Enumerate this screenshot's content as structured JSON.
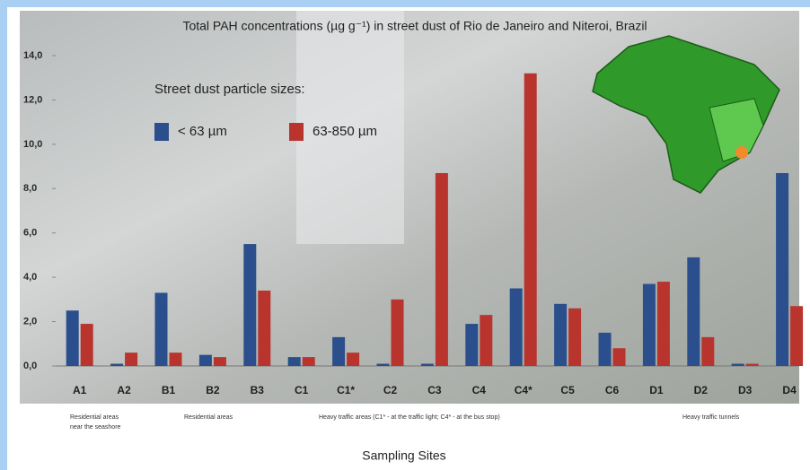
{
  "chart_data": {
    "type": "bar",
    "title": "Total PAH concentrations (µg g⁻¹) in street dust of Rio de Janeiro and Niteroi, Brazil",
    "legend_title": "Street dust particle sizes:",
    "x_label": "Sampling Sites",
    "categories": [
      "A1",
      "A2",
      "B1",
      "B2",
      "B3",
      "C1",
      "C1*",
      "C2",
      "C3",
      "C4",
      "C4*",
      "C5",
      "C6",
      "D1",
      "D2",
      "D3",
      "D4"
    ],
    "series": [
      {
        "name": "< 63 µm",
        "color": "#2b4f8c",
        "values": [
          2.5,
          0.1,
          3.3,
          0.5,
          5.5,
          0.4,
          1.3,
          0.1,
          0.1,
          1.9,
          3.5,
          2.8,
          1.5,
          3.7,
          4.9,
          0.1,
          8.7
        ]
      },
      {
        "name": "63-850 µm",
        "color": "#b9342d",
        "values": [
          1.9,
          0.6,
          0.6,
          0.4,
          3.4,
          0.4,
          0.6,
          3.0,
          8.7,
          2.3,
          13.2,
          2.6,
          0.8,
          3.8,
          1.3,
          0.1,
          2.7
        ]
      }
    ],
    "ylim": [
      0,
      14
    ],
    "yticks": [
      {
        "value": 0,
        "label": "0,0"
      },
      {
        "value": 2,
        "label": "2,0"
      },
      {
        "value": 4,
        "label": "4,0"
      },
      {
        "value": 6,
        "label": "6,0"
      },
      {
        "value": 8,
        "label": "8,0"
      },
      {
        "value": 10,
        "label": "10,0"
      },
      {
        "value": 12,
        "label": "12,0"
      },
      {
        "value": 14,
        "label": "14,0"
      }
    ],
    "group_labels": [
      {
        "lines": [
          "Residential areas",
          "near the seashore"
        ]
      },
      {
        "lines": [
          "Residential areas"
        ]
      },
      {
        "lines": [
          "Heavy traffic areas (C1* - at the traffic light; C4* - at the bus stop)"
        ]
      },
      {
        "lines": [
          "Heavy traffic tunnels"
        ]
      }
    ]
  }
}
